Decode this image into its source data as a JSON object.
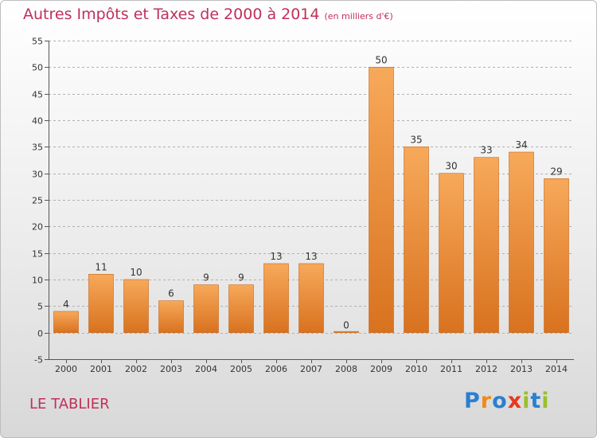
{
  "title": "Autres Impôts et Taxes de 2000 à 2014",
  "subtitle": "(en milliers d'€)",
  "commune": "LE TABLIER",
  "logo": {
    "text": "Proxiti",
    "letter_colors": [
      "#2a7fd0",
      "#f08a1c",
      "#2a7fd0",
      "#e8361f",
      "#9bc02a",
      "#2a7fd0",
      "#9bc02a"
    ]
  },
  "colors": {
    "title": "#c0305a",
    "bar_top": "#f7a95a",
    "bar_bottom": "#d8721f",
    "bar_edge": "#c8661a",
    "axis": "#555555",
    "grid": "#b0b0b0",
    "label": "#333333"
  },
  "chart_data": {
    "type": "bar",
    "title": "Autres Impôts et Taxes de 2000 à 2014",
    "subtitle": "(en milliers d'€)",
    "categories": [
      "2000",
      "2001",
      "2002",
      "2003",
      "2004",
      "2005",
      "2006",
      "2007",
      "2008",
      "2009",
      "2010",
      "2011",
      "2012",
      "2013",
      "2014"
    ],
    "values": [
      4,
      11,
      10,
      6,
      9,
      9,
      13,
      13,
      0,
      50,
      35,
      30,
      33,
      34,
      29
    ],
    "data_labels": [
      "4",
      "11",
      "10",
      "6",
      "9",
      "9",
      "13",
      "13",
      "0",
      "50",
      "35",
      "30",
      "33",
      "34",
      "29"
    ],
    "ylim": [
      -5,
      55
    ],
    "yticks": [
      -5,
      0,
      5,
      10,
      15,
      20,
      25,
      30,
      35,
      40,
      45,
      50,
      55
    ],
    "grid": "horizontal dashed",
    "legend": "none"
  }
}
